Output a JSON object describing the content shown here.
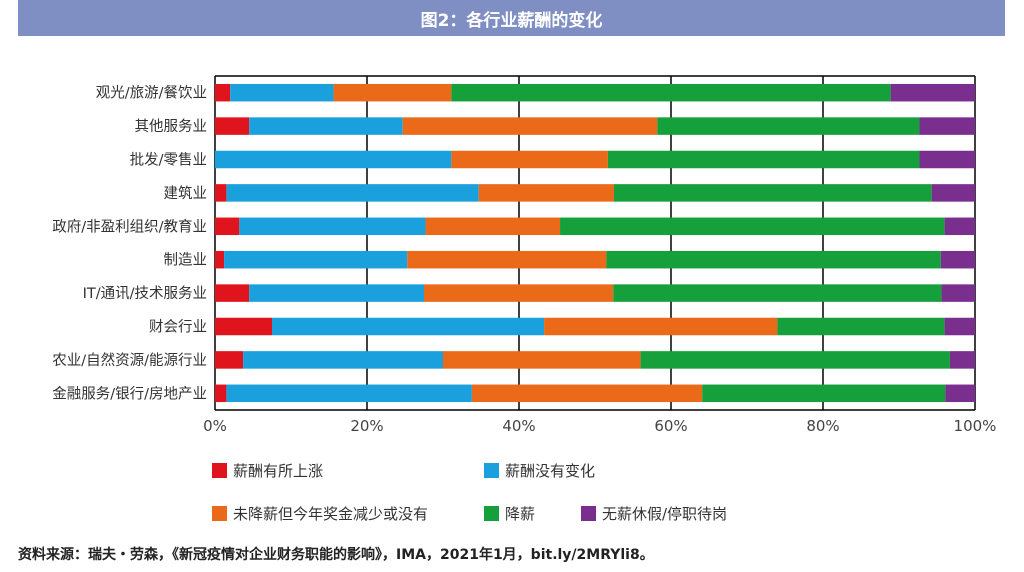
{
  "title": "图2：各行业薪酬的变化",
  "source": "资料来源：瑞夫・劳森，《新冠疫情对企业财务职能的影响》，IMA，2021年1月，bit.ly/2MRYli8。",
  "chart_data": {
    "type": "bar",
    "orientation": "horizontal",
    "stacked": true,
    "categories": [
      "观光/旅游/餐饮业",
      "其他服务业",
      "批发/零售业",
      "建筑业",
      "政府/非盈利组织/教育业",
      "制造业",
      "IT/通讯/技术服务业",
      "财会行业",
      "农业/自然资源/能源行业",
      "金融服务/银行/房地产业"
    ],
    "series": [
      {
        "name": "薪酬有所上涨",
        "color": "#e0141c",
        "values": [
          2,
          4.5,
          0,
          1.5,
          3.2,
          1.2,
          4.5,
          7.5,
          3.7,
          1.5
        ]
      },
      {
        "name": "薪酬没有变化",
        "color": "#1aa0dc",
        "values": [
          13.6,
          20.2,
          31.1,
          33.2,
          24.5,
          24.1,
          23,
          35.8,
          26.3,
          32.3
        ]
      },
      {
        "name": "未降薪但今年奖金减少或没有",
        "color": "#ea6a1a",
        "values": [
          15.5,
          33.5,
          20.6,
          17.8,
          17.7,
          26.2,
          24.9,
          30.7,
          26,
          30.3
        ]
      },
      {
        "name": "降薪",
        "color": "#15a03c",
        "values": [
          57.8,
          34.5,
          41,
          41.8,
          50.6,
          44,
          43.2,
          22,
          40.7,
          32
        ]
      },
      {
        "name": "无薪休假/停职待岗",
        "color": "#7a2e8e",
        "values": [
          11.1,
          7.3,
          7.3,
          5.7,
          4,
          4.5,
          4.4,
          4,
          3.3,
          3.9
        ]
      }
    ],
    "xlim": [
      0,
      100
    ],
    "xticks": [
      "0%",
      "20%",
      "40%",
      "60%",
      "80%",
      "100%"
    ],
    "grid": true,
    "legend_position": "bottom"
  }
}
